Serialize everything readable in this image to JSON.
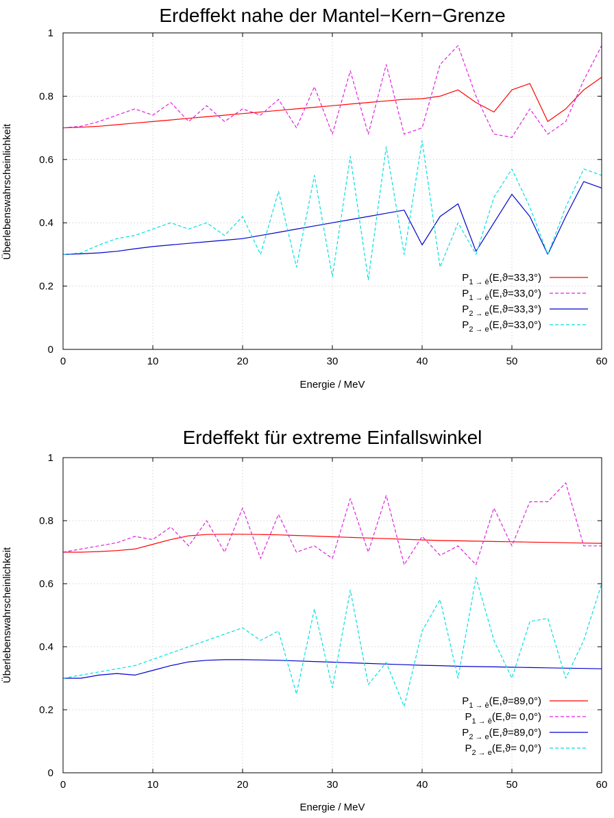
{
  "chart_data": [
    {
      "type": "line",
      "title": "Erdeffekt nahe der Mantel−Kern−Grenze",
      "xlabel": "Energie / MeV",
      "ylabel": "Überlebenswahrscheinlichkeit",
      "xlim": [
        0,
        60
      ],
      "ylim": [
        0,
        1
      ],
      "xticks": [
        "0",
        "10",
        "20",
        "30",
        "40",
        "50",
        "60"
      ],
      "yticks": [
        "0",
        "0.2",
        "0.4",
        "0.6",
        "0.8",
        "1"
      ],
      "grid": true,
      "legend_position": "bottom-right",
      "series": [
        {
          "legend": {
            "p": "P",
            "sub": "1 → ē",
            "args": "(E,ϑ=33,3°)"
          },
          "color": "#ff0000",
          "dash": "solid",
          "x": [
            0,
            2,
            4,
            6,
            8,
            10,
            12,
            14,
            16,
            18,
            20,
            22,
            24,
            26,
            28,
            30,
            32,
            34,
            36,
            38,
            40,
            42,
            44,
            46,
            48,
            50,
            52,
            54,
            56,
            58,
            60
          ],
          "y": [
            0.7,
            0.702,
            0.705,
            0.71,
            0.715,
            0.72,
            0.725,
            0.73,
            0.735,
            0.74,
            0.745,
            0.75,
            0.755,
            0.76,
            0.765,
            0.77,
            0.775,
            0.78,
            0.785,
            0.79,
            0.792,
            0.8,
            0.82,
            0.78,
            0.75,
            0.82,
            0.84,
            0.72,
            0.76,
            0.82,
            0.86
          ]
        },
        {
          "legend": {
            "p": "P",
            "sub": "1 → ē",
            "args": "(E,ϑ=33,0°)"
          },
          "color": "#e020e0",
          "dash": "dashed",
          "x": [
            0,
            2,
            4,
            6,
            8,
            10,
            12,
            14,
            16,
            18,
            20,
            22,
            24,
            26,
            28,
            30,
            32,
            34,
            36,
            38,
            40,
            42,
            44,
            46,
            48,
            50,
            52,
            54,
            56,
            58,
            60
          ],
          "y": [
            0.7,
            0.705,
            0.72,
            0.74,
            0.76,
            0.74,
            0.78,
            0.72,
            0.77,
            0.72,
            0.76,
            0.74,
            0.79,
            0.7,
            0.83,
            0.68,
            0.88,
            0.68,
            0.9,
            0.68,
            0.7,
            0.9,
            0.96,
            0.8,
            0.68,
            0.67,
            0.76,
            0.68,
            0.72,
            0.85,
            0.96
          ]
        },
        {
          "legend": {
            "p": "P",
            "sub": "2 → e",
            "args": "(E,ϑ=33,3°)"
          },
          "color": "#0000cc",
          "dash": "solid",
          "x": [
            0,
            2,
            4,
            6,
            8,
            10,
            12,
            14,
            16,
            18,
            20,
            22,
            24,
            26,
            28,
            30,
            32,
            34,
            36,
            38,
            40,
            42,
            44,
            46,
            48,
            50,
            52,
            54,
            56,
            58,
            60
          ],
          "y": [
            0.3,
            0.302,
            0.305,
            0.31,
            0.318,
            0.325,
            0.33,
            0.335,
            0.34,
            0.345,
            0.35,
            0.36,
            0.37,
            0.38,
            0.39,
            0.4,
            0.41,
            0.42,
            0.43,
            0.44,
            0.33,
            0.42,
            0.46,
            0.31,
            0.4,
            0.49,
            0.42,
            0.3,
            0.42,
            0.53,
            0.51
          ]
        },
        {
          "legend": {
            "p": "P",
            "sub": "2 → e",
            "args": "(E,ϑ=33,0°)"
          },
          "color": "#00e0e0",
          "dash": "dashed",
          "x": [
            0,
            2,
            4,
            6,
            8,
            10,
            12,
            14,
            16,
            18,
            20,
            22,
            24,
            26,
            28,
            30,
            32,
            34,
            36,
            38,
            40,
            42,
            44,
            46,
            48,
            50,
            52,
            54,
            56,
            58,
            60
          ],
          "y": [
            0.3,
            0.305,
            0.33,
            0.35,
            0.36,
            0.38,
            0.4,
            0.38,
            0.4,
            0.36,
            0.42,
            0.3,
            0.5,
            0.26,
            0.55,
            0.23,
            0.61,
            0.22,
            0.64,
            0.3,
            0.66,
            0.26,
            0.4,
            0.3,
            0.48,
            0.57,
            0.45,
            0.3,
            0.45,
            0.57,
            0.55
          ]
        }
      ]
    },
    {
      "type": "line",
      "title": "Erdeffekt für extreme Einfallswinkel",
      "xlabel": "Energie / MeV",
      "ylabel": "Überlebenswahrscheinlichkeit",
      "xlim": [
        0,
        60
      ],
      "ylim": [
        0,
        1
      ],
      "xticks": [
        "0",
        "10",
        "20",
        "30",
        "40",
        "50",
        "60"
      ],
      "yticks": [
        "0",
        "0.2",
        "0.4",
        "0.6",
        "0.8",
        "1"
      ],
      "grid": true,
      "legend_position": "bottom-right",
      "series": [
        {
          "legend": {
            "p": "P",
            "sub": "1 → ē",
            "args": "(E,ϑ=89,0°)"
          },
          "color": "#ff0000",
          "dash": "solid",
          "x": [
            0,
            2,
            4,
            6,
            8,
            10,
            12,
            14,
            16,
            18,
            20,
            22,
            24,
            26,
            28,
            30,
            32,
            34,
            36,
            38,
            40,
            42,
            44,
            46,
            48,
            50,
            52,
            54,
            56,
            58,
            60
          ],
          "y": [
            0.7,
            0.7,
            0.702,
            0.705,
            0.71,
            0.725,
            0.74,
            0.752,
            0.756,
            0.757,
            0.757,
            0.756,
            0.755,
            0.753,
            0.751,
            0.749,
            0.747,
            0.745,
            0.743,
            0.741,
            0.739,
            0.737,
            0.736,
            0.735,
            0.734,
            0.733,
            0.732,
            0.731,
            0.73,
            0.729,
            0.728
          ]
        },
        {
          "legend": {
            "p": "P",
            "sub": "1 → ē",
            "args": "(E,ϑ=  0,0°)"
          },
          "color": "#e020e0",
          "dash": "dashed",
          "x": [
            0,
            2,
            4,
            6,
            8,
            10,
            12,
            14,
            16,
            18,
            20,
            22,
            24,
            26,
            28,
            30,
            32,
            34,
            36,
            38,
            40,
            42,
            44,
            46,
            48,
            50,
            52,
            54,
            56,
            58,
            60
          ],
          "y": [
            0.7,
            0.71,
            0.72,
            0.73,
            0.75,
            0.74,
            0.78,
            0.72,
            0.8,
            0.7,
            0.84,
            0.68,
            0.82,
            0.7,
            0.72,
            0.68,
            0.87,
            0.7,
            0.88,
            0.66,
            0.75,
            0.69,
            0.72,
            0.66,
            0.84,
            0.72,
            0.86,
            0.86,
            0.92,
            0.72,
            0.72
          ]
        },
        {
          "legend": {
            "p": "P",
            "sub": "2 → e",
            "args": "(E,ϑ=89,0°)"
          },
          "color": "#0000cc",
          "dash": "solid",
          "x": [
            0,
            2,
            4,
            6,
            8,
            10,
            12,
            14,
            16,
            18,
            20,
            22,
            24,
            26,
            28,
            30,
            32,
            34,
            36,
            38,
            40,
            42,
            44,
            46,
            48,
            50,
            52,
            54,
            56,
            58,
            60
          ],
          "y": [
            0.3,
            0.3,
            0.31,
            0.315,
            0.31,
            0.325,
            0.34,
            0.352,
            0.357,
            0.359,
            0.359,
            0.358,
            0.357,
            0.355,
            0.353,
            0.351,
            0.349,
            0.347,
            0.345,
            0.343,
            0.341,
            0.34,
            0.338,
            0.337,
            0.336,
            0.335,
            0.334,
            0.333,
            0.332,
            0.331,
            0.33
          ]
        },
        {
          "legend": {
            "p": "P",
            "sub": "2 → e",
            "args": "(E,ϑ=  0,0°)"
          },
          "color": "#00e0e0",
          "dash": "dashed",
          "x": [
            0,
            2,
            4,
            6,
            8,
            10,
            12,
            14,
            16,
            18,
            20,
            22,
            24,
            26,
            28,
            30,
            32,
            34,
            36,
            38,
            40,
            42,
            44,
            46,
            48,
            50,
            52,
            54,
            56,
            58,
            60
          ],
          "y": [
            0.3,
            0.31,
            0.32,
            0.33,
            0.34,
            0.36,
            0.38,
            0.4,
            0.42,
            0.44,
            0.46,
            0.42,
            0.45,
            0.25,
            0.52,
            0.27,
            0.58,
            0.28,
            0.35,
            0.21,
            0.45,
            0.55,
            0.3,
            0.62,
            0.42,
            0.3,
            0.48,
            0.49,
            0.3,
            0.42,
            0.6
          ]
        }
      ]
    }
  ]
}
